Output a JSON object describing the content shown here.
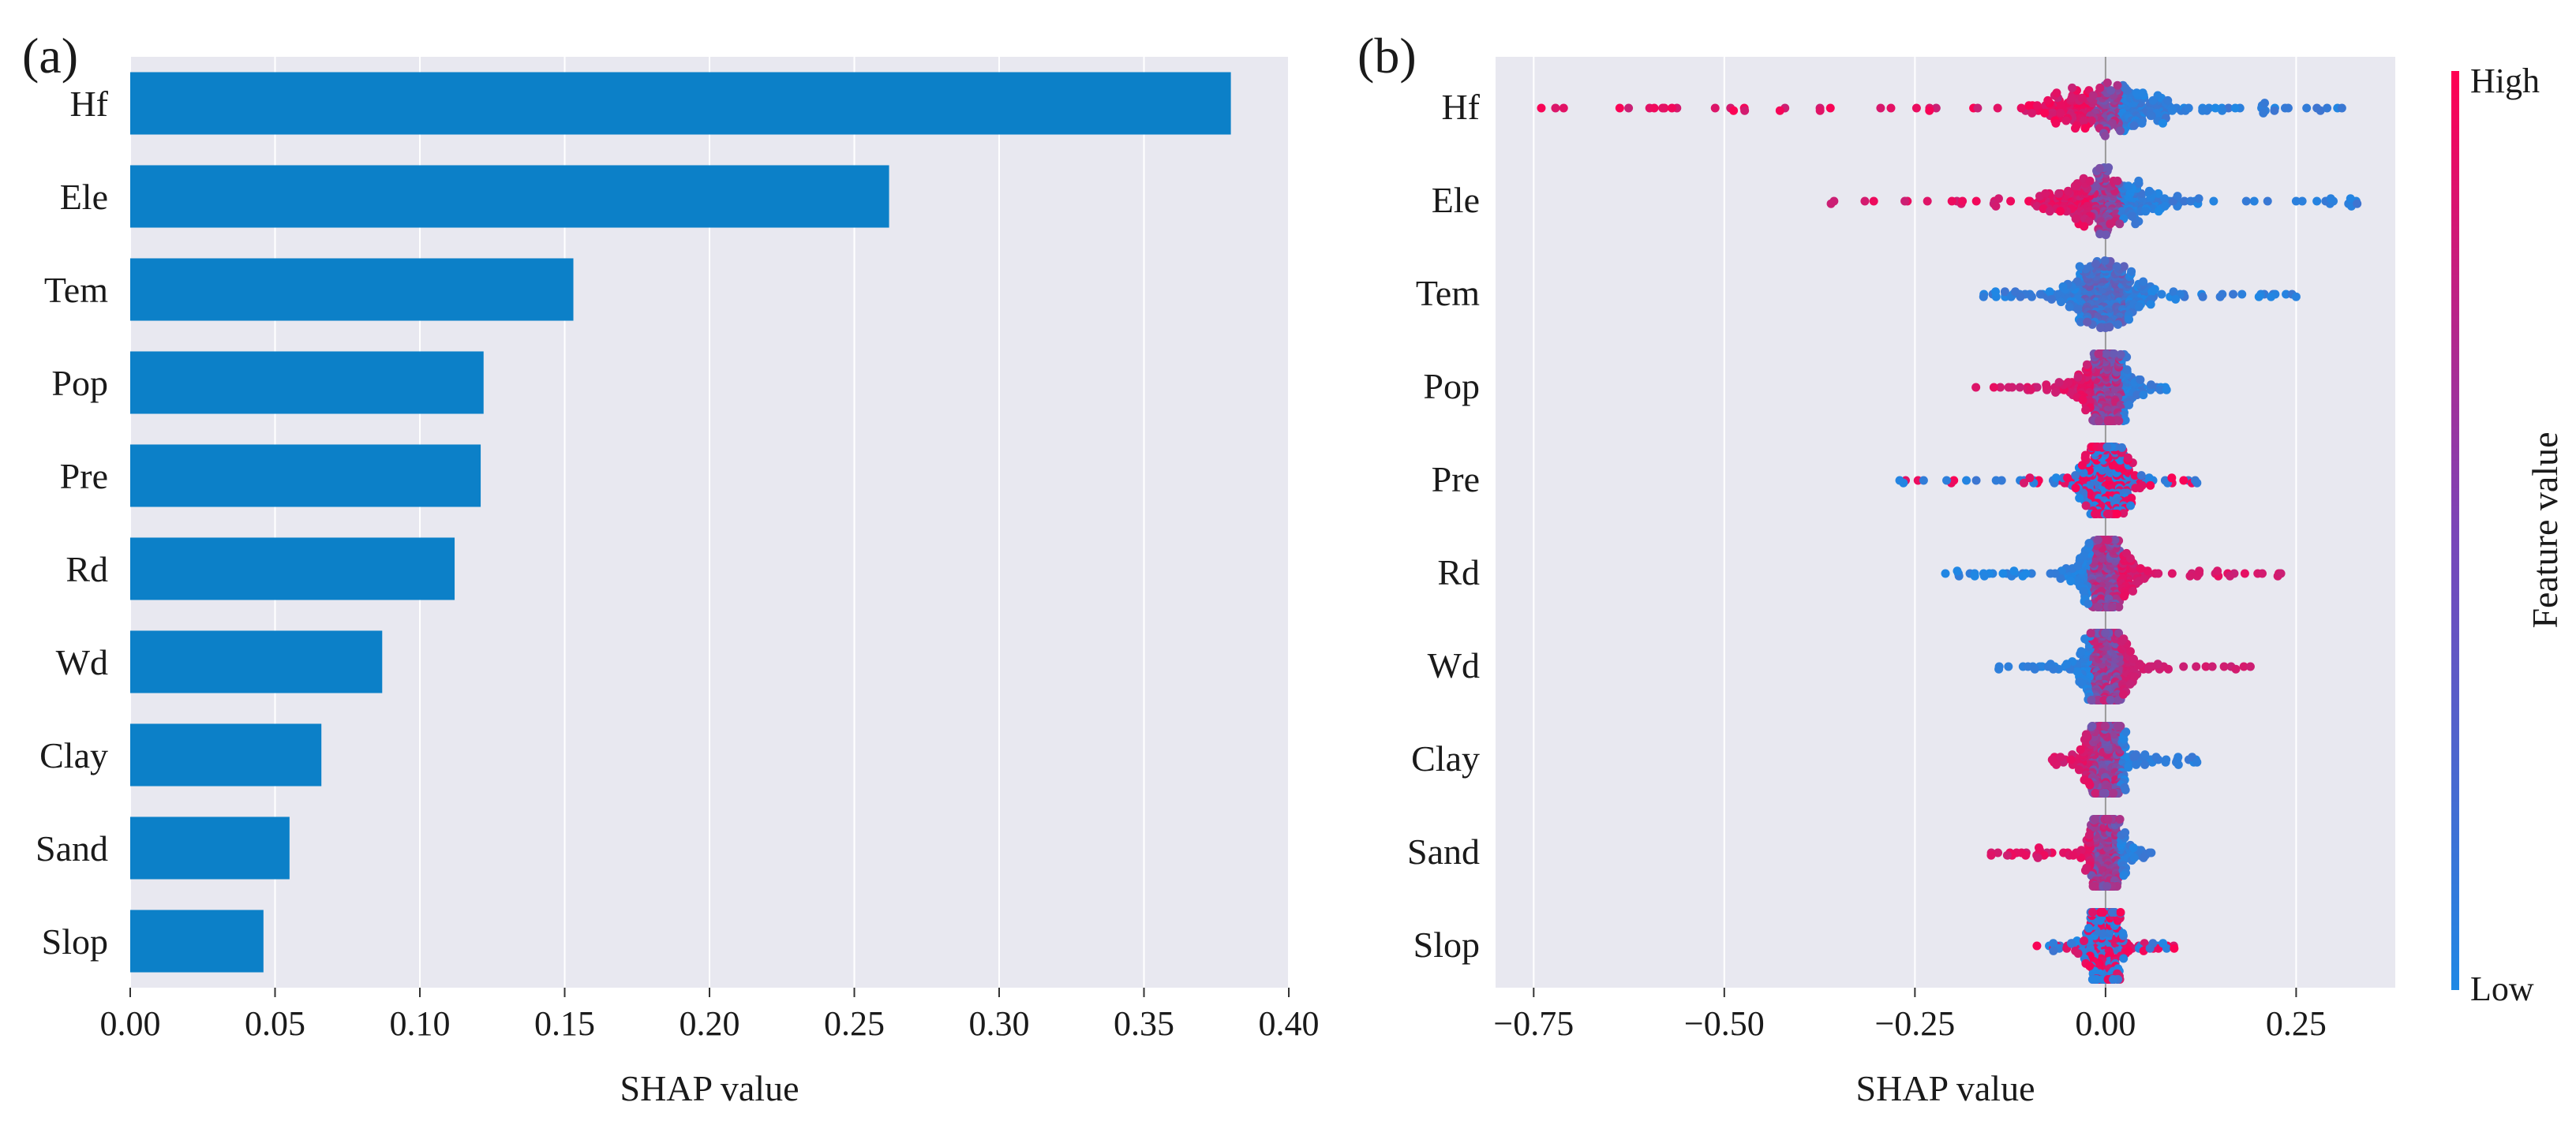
{
  "figure": {
    "panel_a_label": "(a)",
    "panel_b_label": "(b)"
  },
  "colors": {
    "plot_bg": "#e8e8f0",
    "grid": "#ffffff",
    "bar": "#0c80c8",
    "low": "#1e88e5",
    "high": "#ff0052"
  },
  "chart_data": [
    {
      "type": "bar",
      "orientation": "horizontal",
      "title": "",
      "categories": [
        "Hf",
        "Ele",
        "Tem",
        "Pop",
        "Pre",
        "Rd",
        "Wd",
        "Clay",
        "Sand",
        "Slop"
      ],
      "values": [
        0.38,
        0.262,
        0.153,
        0.122,
        0.121,
        0.112,
        0.087,
        0.066,
        0.055,
        0.046
      ],
      "xlabel": "SHAP value",
      "ylabel": "",
      "xlim": [
        0,
        0.4
      ],
      "xticks": [
        0.0,
        0.05,
        0.1,
        0.15,
        0.2,
        0.25,
        0.3,
        0.35,
        0.4
      ],
      "xtick_labels": [
        "0.00",
        "0.05",
        "0.10",
        "0.15",
        "0.20",
        "0.25",
        "0.30",
        "0.35",
        "0.40"
      ],
      "grid": true
    },
    {
      "type": "scatter",
      "subtype": "beeswarm",
      "title": "",
      "categories": [
        "Hf",
        "Ele",
        "Tem",
        "Pop",
        "Pre",
        "Rd",
        "Wd",
        "Clay",
        "Sand",
        "Slop"
      ],
      "xlabel": "SHAP value",
      "ylabel": "",
      "xlim": [
        -0.8,
        0.38
      ],
      "xticks": [
        -0.75,
        -0.5,
        -0.25,
        0.0,
        0.25
      ],
      "xtick_labels": [
        "−0.75",
        "−0.50",
        "−0.25",
        "0.00",
        "0.25"
      ],
      "grid": true,
      "colorbar": {
        "label": "Feature value",
        "high": "High",
        "low": "Low"
      },
      "features": [
        {
          "name": "Hf",
          "min": -0.74,
          "max": 0.31,
          "core_spread": 0.055,
          "high_side": "negative",
          "strength": 1.0
        },
        {
          "name": "Ele",
          "min": -0.36,
          "max": 0.33,
          "core_spread": 0.04,
          "high_side": "negative",
          "strength": 0.85
        },
        {
          "name": "Tem",
          "min": -0.16,
          "max": 0.25,
          "core_spread": 0.03,
          "high_side": "none",
          "strength": 0.3
        },
        {
          "name": "Pop",
          "min": -0.17,
          "max": 0.08,
          "core_spread": 0.02,
          "high_side": "negative",
          "strength": 0.7
        },
        {
          "name": "Pre",
          "min": -0.27,
          "max": 0.12,
          "core_spread": 0.022,
          "high_side": "mixed",
          "strength": 0.5
        },
        {
          "name": "Rd",
          "min": -0.21,
          "max": 0.23,
          "core_spread": 0.022,
          "high_side": "positive",
          "strength": 0.7
        },
        {
          "name": "Wd",
          "min": -0.14,
          "max": 0.19,
          "core_spread": 0.02,
          "high_side": "positive",
          "strength": 0.3
        },
        {
          "name": "Clay",
          "min": -0.07,
          "max": 0.12,
          "core_spread": 0.015,
          "high_side": "negative",
          "strength": 0.6
        },
        {
          "name": "Sand",
          "min": -0.15,
          "max": 0.06,
          "core_spread": 0.012,
          "high_side": "negative",
          "strength": 0.8
        },
        {
          "name": "Slop",
          "min": -0.09,
          "max": 0.09,
          "core_spread": 0.012,
          "high_side": "mixed",
          "strength": 0.4
        }
      ]
    }
  ]
}
